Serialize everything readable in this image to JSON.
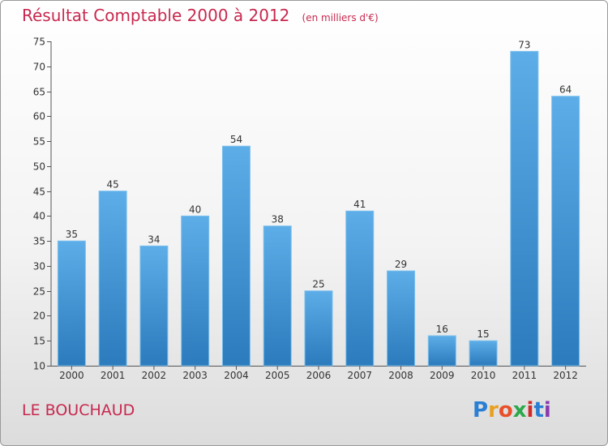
{
  "chart_data": {
    "type": "bar",
    "title": "Résultat Comptable 2000 à 2012",
    "subtitle": "(en milliers d'€)",
    "categories": [
      "2000",
      "2001",
      "2002",
      "2003",
      "2004",
      "2005",
      "2006",
      "2007",
      "2008",
      "2009",
      "2010",
      "2011",
      "2012"
    ],
    "values": [
      35,
      45,
      34,
      40,
      54,
      38,
      25,
      41,
      29,
      16,
      15,
      73,
      64
    ],
    "ylim": [
      10,
      75
    ],
    "yticks": [
      10,
      15,
      20,
      25,
      30,
      35,
      40,
      45,
      50,
      55,
      60,
      65,
      70,
      75
    ],
    "grid": false,
    "bar_color_top": "#5dade8",
    "bar_color_bottom": "#2b7bbd"
  },
  "footer": {
    "place": "LE BOUCHAUD",
    "logo_letters": [
      "P",
      "r",
      "o",
      "x",
      "i",
      "t",
      "i"
    ],
    "logo_colors": [
      "#2a7fd4",
      "#e8a020",
      "#e8502a",
      "#2aa84a",
      "#d02a2a",
      "#2a7fd4",
      "#8a3ab0"
    ]
  }
}
